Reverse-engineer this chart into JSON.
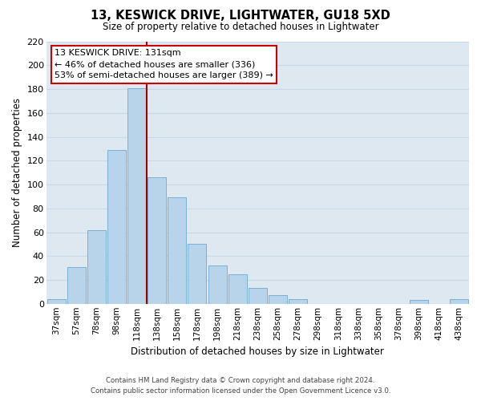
{
  "title": "13, KESWICK DRIVE, LIGHTWATER, GU18 5XD",
  "subtitle": "Size of property relative to detached houses in Lightwater",
  "xlabel": "Distribution of detached houses by size in Lightwater",
  "ylabel": "Number of detached properties",
  "bar_labels": [
    "37sqm",
    "57sqm",
    "78sqm",
    "98sqm",
    "118sqm",
    "138sqm",
    "158sqm",
    "178sqm",
    "198sqm",
    "218sqm",
    "238sqm",
    "258sqm",
    "278sqm",
    "298sqm",
    "318sqm",
    "338sqm",
    "358sqm",
    "378sqm",
    "398sqm",
    "418sqm",
    "438sqm"
  ],
  "bar_values": [
    4,
    31,
    62,
    129,
    181,
    106,
    89,
    50,
    32,
    25,
    13,
    7,
    4,
    0,
    0,
    0,
    0,
    0,
    3,
    0,
    4
  ],
  "bar_color": "#b8d4ea",
  "bar_edge_color": "#7aafd4",
  "marker_color": "#aa0000",
  "annotation_line1": "13 KESWICK DRIVE: 131sqm",
  "annotation_line2": "← 46% of detached houses are smaller (336)",
  "annotation_line3": "53% of semi-detached houses are larger (389) →",
  "ylim": [
    0,
    220
  ],
  "yticks": [
    0,
    20,
    40,
    60,
    80,
    100,
    120,
    140,
    160,
    180,
    200,
    220
  ],
  "grid_color": "#c8d8e8",
  "bg_color": "#dde8f0",
  "footer_line1": "Contains HM Land Registry data © Crown copyright and database right 2024.",
  "footer_line2": "Contains public sector information licensed under the Open Government Licence v3.0."
}
